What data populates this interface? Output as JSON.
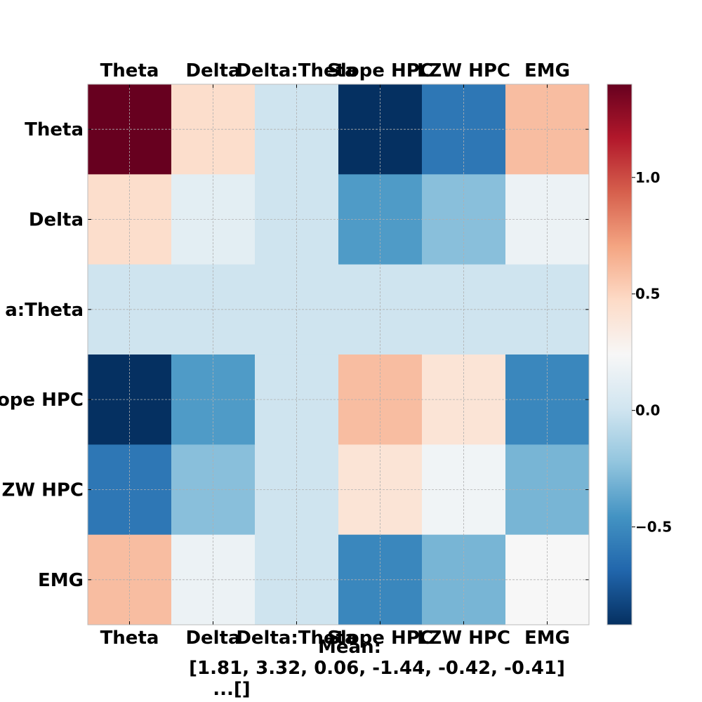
{
  "chart_data": {
    "type": "heatmap",
    "x_labels": [
      "Theta",
      "Delta",
      "Delta:Theta",
      "Slope HPC",
      "LZW HPC",
      "EMG"
    ],
    "y_labels": [
      "Theta",
      "Delta",
      "Delta:Theta",
      "Slope HPC",
      "LZW HPC",
      "EMG"
    ],
    "y_tick_display": [
      "Theta",
      "Delta",
      "a:Theta",
      "ope HPC",
      "ZW HPC",
      "EMG"
    ],
    "values": [
      [
        1.4,
        0.45,
        0.0,
        -0.92,
        -0.6,
        0.6
      ],
      [
        0.45,
        0.12,
        0.0,
        -0.42,
        -0.25,
        0.17
      ],
      [
        0.0,
        0.0,
        0.0,
        0.0,
        0.0,
        0.0
      ],
      [
        -0.92,
        -0.42,
        0.0,
        0.6,
        0.4,
        -0.52
      ],
      [
        -0.6,
        -0.25,
        0.0,
        0.4,
        0.2,
        -0.3
      ],
      [
        0.6,
        0.17,
        0.0,
        -0.52,
        -0.3,
        0.24
      ]
    ],
    "colormap": "RdBu_r",
    "vmin": -0.92,
    "vmax": 1.4,
    "colorbar_ticks": [
      1.0,
      0.5,
      0.0,
      -0.5
    ],
    "colorbar_tick_labels": [
      "1.0",
      "0.5",
      "0.0",
      "−0.5"
    ],
    "grid": true,
    "xlabel_lines": [
      "Mean:",
      "[1.81, 3.32, 0.06, -1.44, -0.42, -0.41]",
      "...[]"
    ]
  }
}
